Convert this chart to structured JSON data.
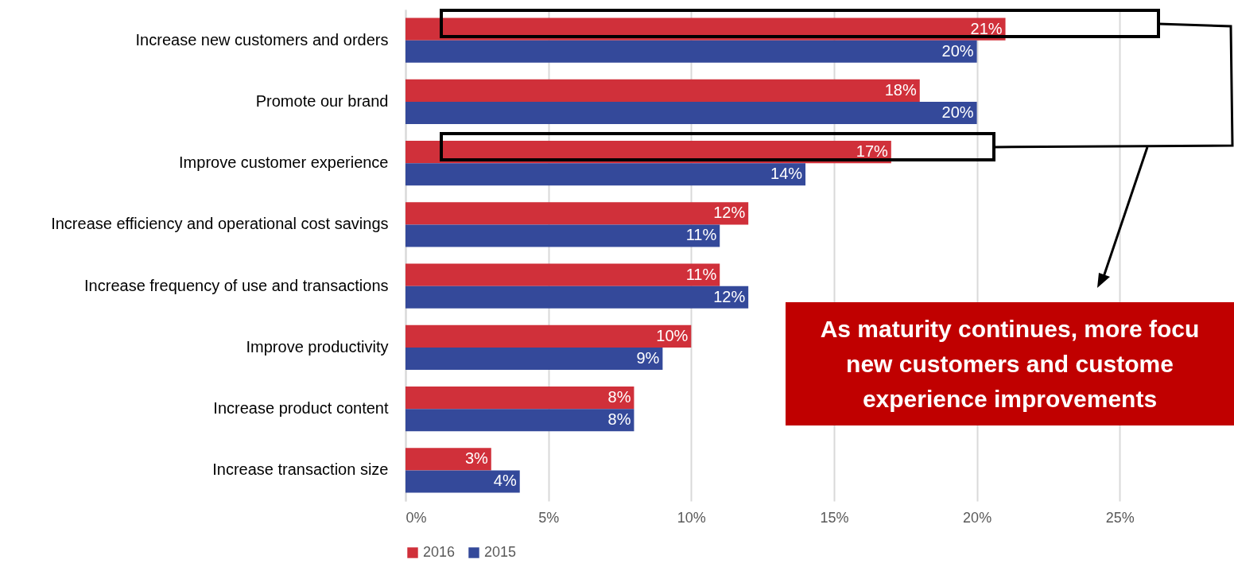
{
  "chart_data": {
    "type": "bar",
    "orientation": "horizontal",
    "categories": [
      "Increase new customers and orders",
      "Promote our brand",
      "Improve customer experience",
      "Increase efficiency and operational cost savings",
      "Increase frequency of use and transactions",
      "Improve productivity",
      "Increase product content",
      "Increase transaction size"
    ],
    "series": [
      {
        "name": "2016",
        "color": "#d0303a",
        "values": [
          21,
          18,
          17,
          12,
          11,
          10,
          8,
          3
        ],
        "value_labels": [
          "21%",
          "18%",
          "17%",
          "12%",
          "11%",
          "10%",
          "8%",
          "3%"
        ]
      },
      {
        "name": "2015",
        "color": "#34499a",
        "values": [
          20,
          20,
          14,
          11,
          12,
          9,
          8,
          4
        ],
        "value_labels": [
          "20%",
          "20%",
          "14%",
          "11%",
          "12%",
          "9%",
          "8%",
          "4%"
        ]
      }
    ],
    "xlim": [
      0,
      29
    ],
    "xticks": [
      {
        "value": 0,
        "label": "0%"
      },
      {
        "value": 5,
        "label": "5%"
      },
      {
        "value": 10,
        "label": "10%"
      },
      {
        "value": 15,
        "label": "15%"
      },
      {
        "value": 20,
        "label": "20%"
      },
      {
        "value": 25,
        "label": "25%"
      }
    ],
    "grid": "x",
    "legend": "bottom",
    "annotations": [
      "As maturity continues, more focu",
      "new customers and custome",
      "experience improvements"
    ]
  }
}
